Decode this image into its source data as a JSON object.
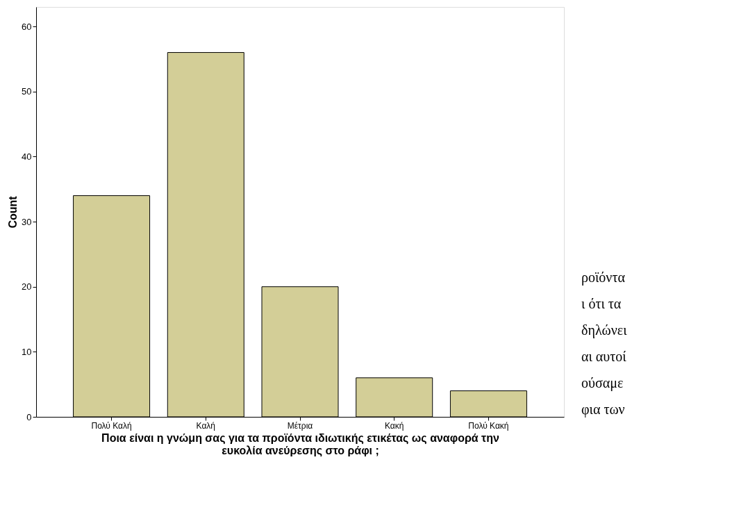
{
  "chart_data": {
    "type": "bar",
    "xlabel": "Ποια είναι η γνώμη σας για τα προϊόντα ιδιωτικής ετικέτας ως αναφορά την ευκολία ανεύρεσης στο ράφι ;",
    "ylabel": "Count",
    "categories": [
      "Πολύ Καλή",
      "Καλή",
      "Μέτρια",
      "Κακή",
      "Πολύ Κακή"
    ],
    "values": [
      34,
      56,
      20,
      6,
      4
    ],
    "color": "#d3ce97",
    "ylim": [
      0,
      63
    ],
    "yticks": [
      0,
      10,
      20,
      30,
      40,
      50,
      60
    ],
    "grid": false,
    "annotations": [
      "ροϊόντα",
      "ι ότι τα",
      "δηλώνει",
      "αι αυτοί",
      "ούσαμε",
      "φια των"
    ]
  }
}
